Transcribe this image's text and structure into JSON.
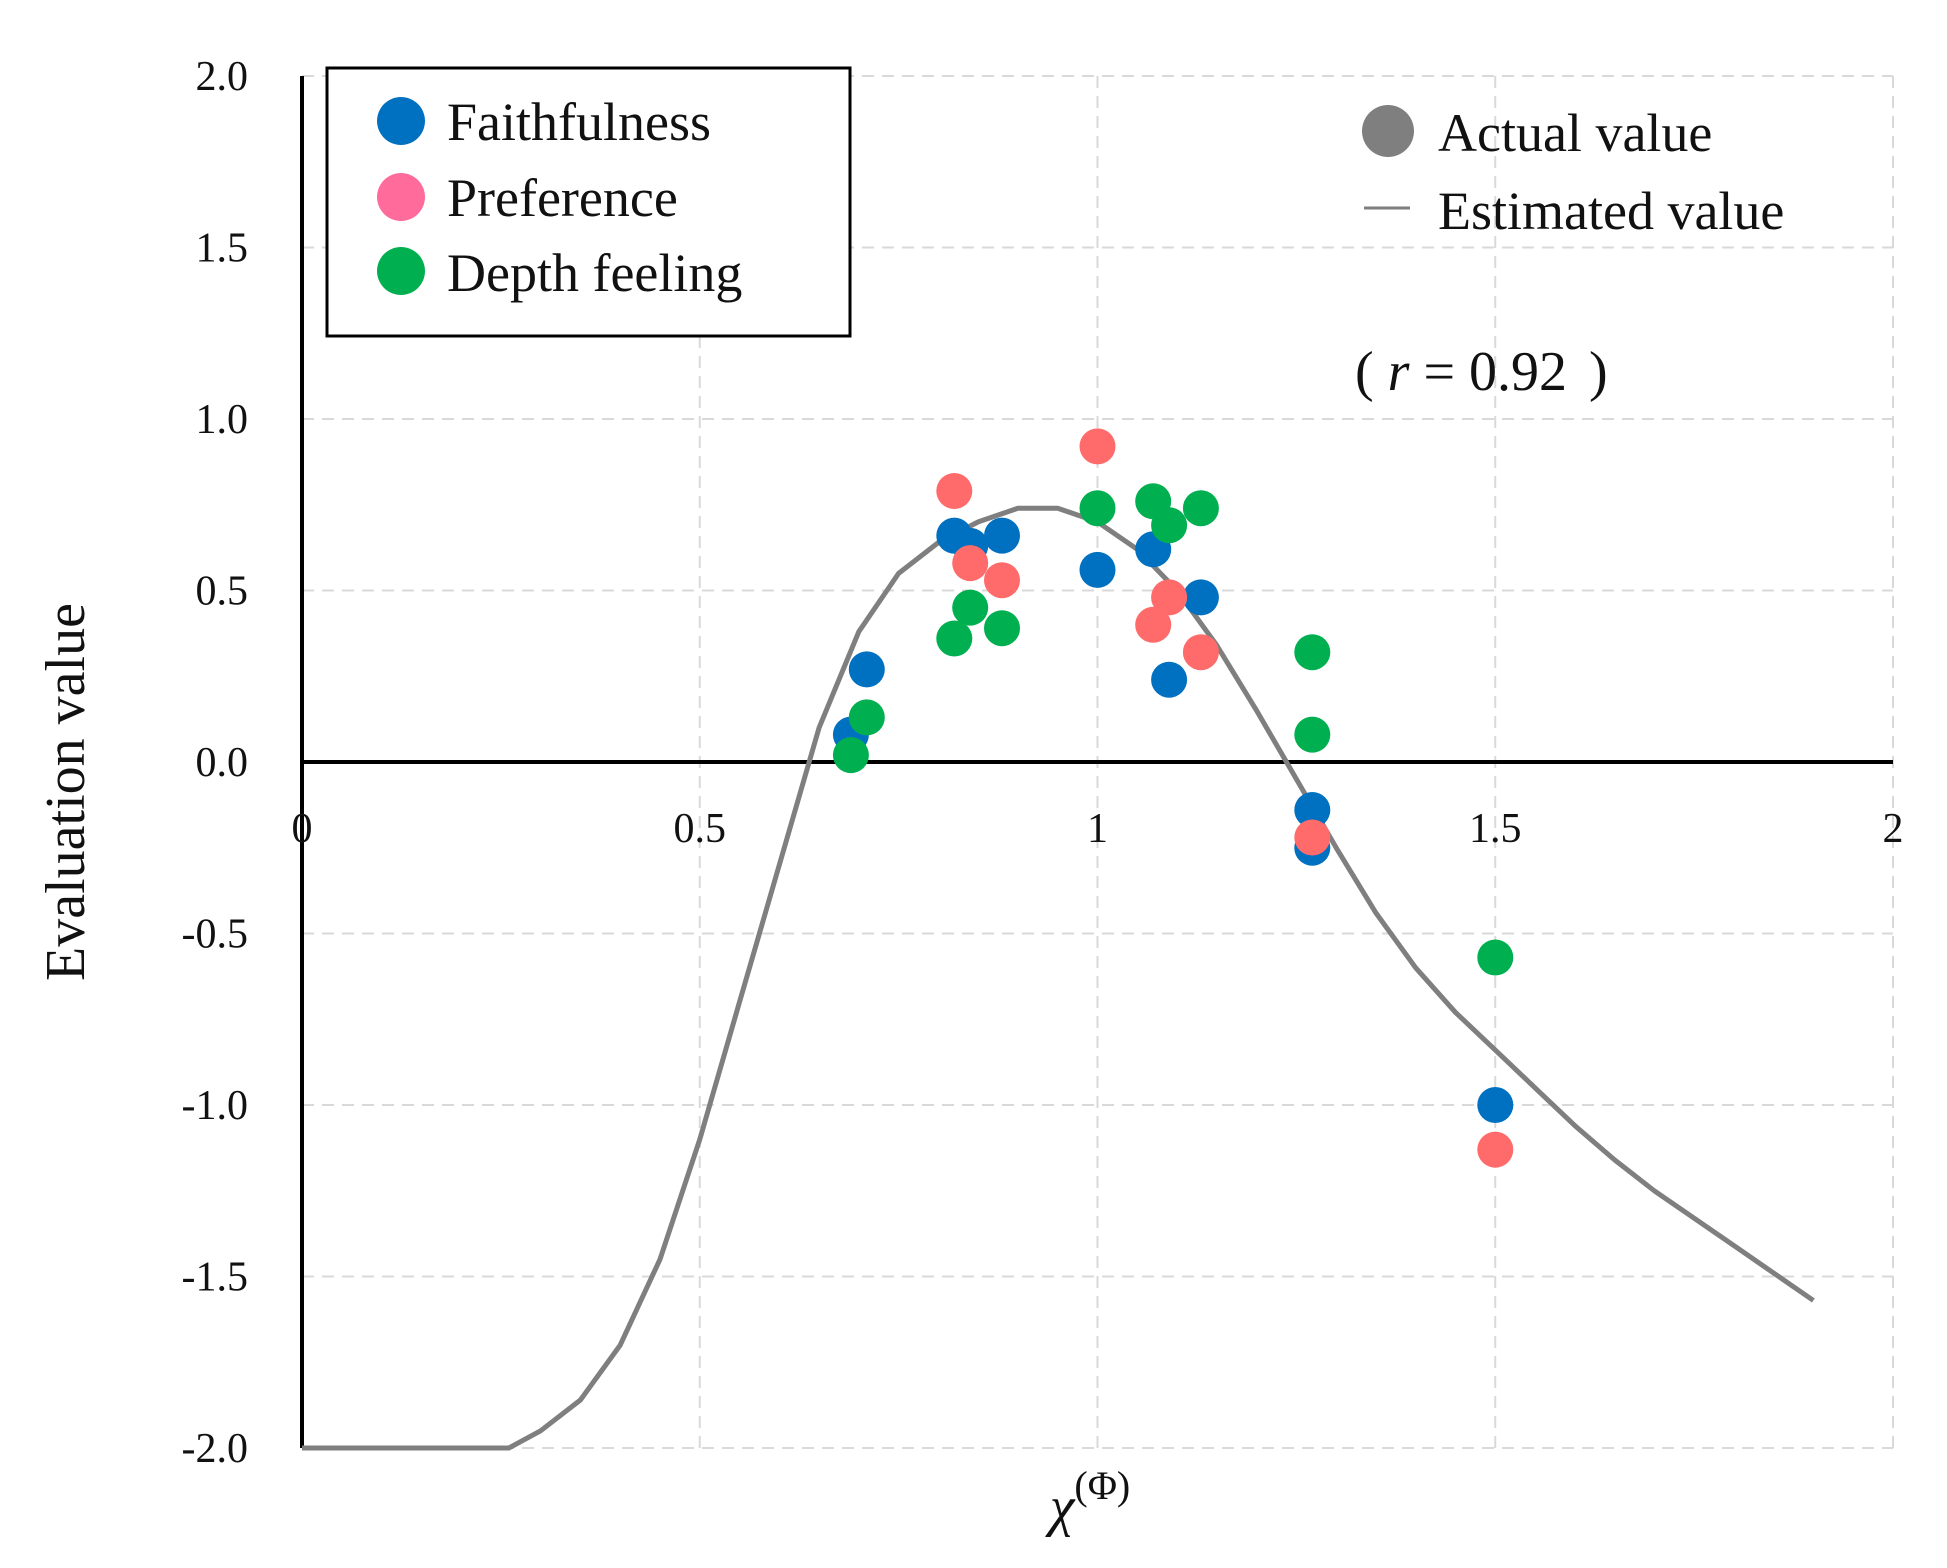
{
  "chart_data": {
    "type": "scatter",
    "title": "",
    "xlabel": "χ",
    "xlabel_superscript": "(Φ)",
    "ylabel": "Evaluation value",
    "xlim": [
      0,
      2
    ],
    "ylim": [
      -2.0,
      2.0
    ],
    "grid": true,
    "x_ticks": [
      "0",
      "0.5",
      "1",
      "1.5",
      "2"
    ],
    "x_tick_values": [
      0,
      0.5,
      1,
      1.5,
      2
    ],
    "y_ticks": [
      "2.0",
      "1.5",
      "1.0",
      "0.5",
      "0.0",
      "-0.5",
      "-1.0",
      "-1.5",
      "-2.0"
    ],
    "y_tick_values": [
      2.0,
      1.5,
      1.0,
      0.5,
      0.0,
      -0.5,
      -1.0,
      -1.5,
      -2.0
    ],
    "legend": {
      "placement": "top-left",
      "entries": [
        "Faithfulness",
        "Preference",
        "Depth feeling"
      ]
    },
    "legend2": {
      "placement": "top-right",
      "actual_label": "Actual value",
      "estimated_label": "Estimated value"
    },
    "annotation": {
      "open": "(",
      "var": "r",
      "rest": " = 0.92",
      "close": ")"
    },
    "colors": {
      "Faithfulness": "#0070c0",
      "Preference": "#ff6b6b",
      "Depth feeling": "#00b050",
      "estimated": "#7f7f7f",
      "actual": "#7f7f7f"
    },
    "series": [
      {
        "name": "Faithfulness",
        "points": [
          [
            0.69,
            0.08
          ],
          [
            0.71,
            0.27
          ],
          [
            0.82,
            0.66
          ],
          [
            0.84,
            0.63
          ],
          [
            0.88,
            0.66
          ],
          [
            1.0,
            0.56
          ],
          [
            1.07,
            0.62
          ],
          [
            1.09,
            0.24
          ],
          [
            1.13,
            0.48
          ],
          [
            1.27,
            -0.14
          ],
          [
            1.27,
            -0.25
          ],
          [
            1.5,
            -1.0
          ]
        ]
      },
      {
        "name": "Preference",
        "points": [
          [
            0.82,
            0.79
          ],
          [
            0.84,
            0.58
          ],
          [
            0.88,
            0.53
          ],
          [
            1.0,
            0.92
          ],
          [
            1.07,
            0.4
          ],
          [
            1.09,
            0.48
          ],
          [
            1.13,
            0.32
          ],
          [
            1.27,
            -0.22
          ],
          [
            1.5,
            -1.13
          ]
        ]
      },
      {
        "name": "Depth feeling",
        "points": [
          [
            0.69,
            0.02
          ],
          [
            0.71,
            0.13
          ],
          [
            0.82,
            0.36
          ],
          [
            0.84,
            0.45
          ],
          [
            0.88,
            0.39
          ],
          [
            1.0,
            0.74
          ],
          [
            1.07,
            0.76
          ],
          [
            1.09,
            0.69
          ],
          [
            1.13,
            0.74
          ],
          [
            1.27,
            0.32
          ],
          [
            1.27,
            0.08
          ],
          [
            1.5,
            -0.57
          ]
        ]
      }
    ],
    "estimated_curve": {
      "name": "Estimated value",
      "x": [
        0,
        0.1,
        0.2,
        0.26,
        0.3,
        0.35,
        0.4,
        0.45,
        0.5,
        0.55,
        0.6,
        0.65,
        0.7,
        0.75,
        0.8,
        0.85,
        0.9,
        0.95,
        1.0,
        1.05,
        1.1,
        1.15,
        1.2,
        1.25,
        1.3,
        1.35,
        1.4,
        1.45,
        1.5,
        1.55,
        1.6,
        1.65,
        1.7,
        1.75,
        1.8,
        1.85,
        1.9
      ],
      "y": [
        -2.0,
        -2.0,
        -2.0,
        -2.0,
        -1.95,
        -1.86,
        -1.7,
        -1.45,
        -1.1,
        -0.7,
        -0.3,
        0.1,
        0.38,
        0.55,
        0.64,
        0.7,
        0.74,
        0.74,
        0.7,
        0.62,
        0.5,
        0.34,
        0.15,
        -0.05,
        -0.25,
        -0.44,
        -0.6,
        -0.73,
        -0.84,
        -0.95,
        -1.06,
        -1.16,
        -1.25,
        -1.33,
        -1.41,
        -1.49,
        -1.57
      ]
    }
  }
}
